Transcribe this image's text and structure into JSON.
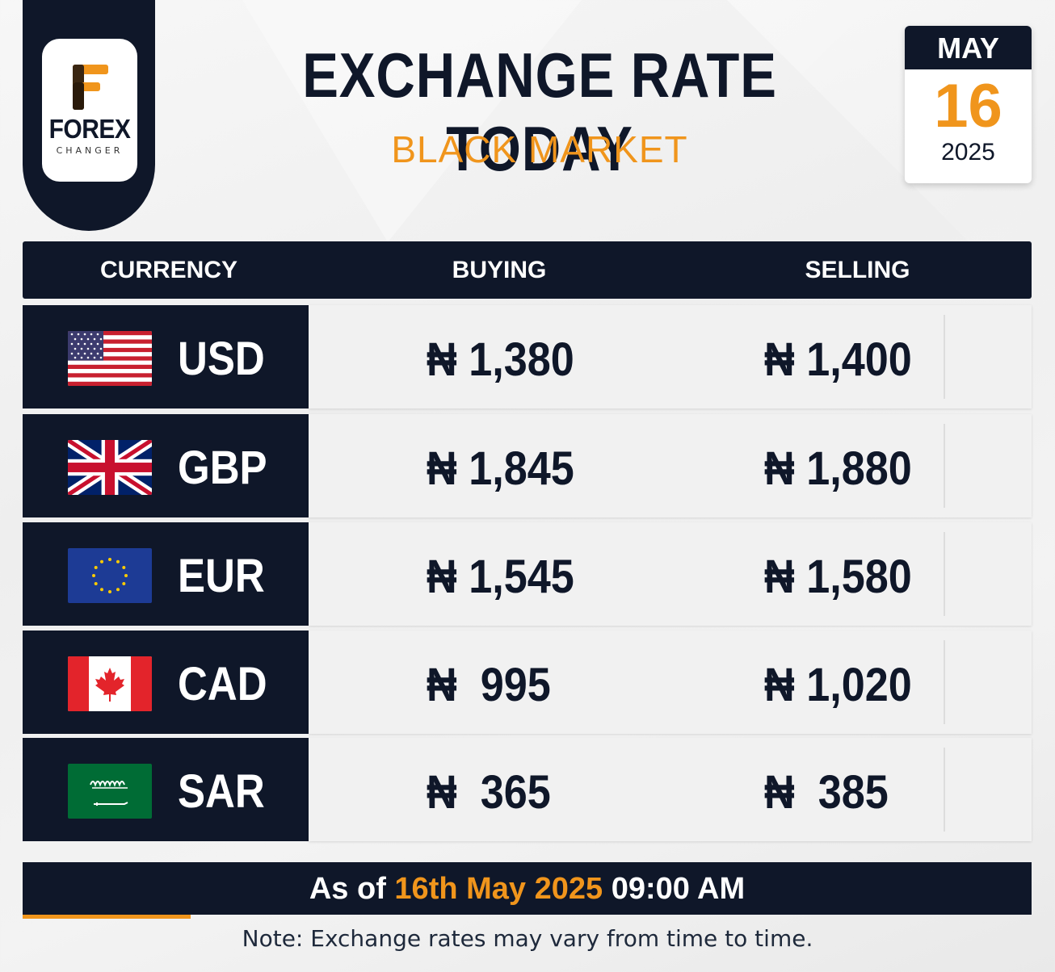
{
  "brand": {
    "name": "FOREX",
    "tagline": "CHANGER",
    "accent_color": "#f0951c",
    "dark_color": "#0f1729"
  },
  "header": {
    "title": "EXCHANGE RATE TODAY",
    "subtitle": "BLACK MARKET"
  },
  "date": {
    "month": "MAY",
    "day": "16",
    "year": "2025"
  },
  "table": {
    "columns": [
      "CURRENCY",
      "BUYING",
      "SELLING"
    ],
    "rows": [
      {
        "code": "USD",
        "flag": "us-flag-icon",
        "buying": "₦ 1,380",
        "selling": "₦ 1,400"
      },
      {
        "code": "GBP",
        "flag": "uk-flag-icon",
        "buying": "₦ 1,845",
        "selling": "₦ 1,880"
      },
      {
        "code": "EUR",
        "flag": "eu-flag-icon",
        "buying": "₦ 1,545",
        "selling": "₦ 1,580"
      },
      {
        "code": "CAD",
        "flag": "canada-flag-icon",
        "buying": "₦  995",
        "selling": "₦ 1,020"
      },
      {
        "code": "SAR",
        "flag": "saudi-flag-icon",
        "buying": "₦  365",
        "selling": "₦  385"
      }
    ]
  },
  "footer": {
    "asof_prefix": "As of ",
    "asof_date": "16th May 2025",
    "asof_time": " 09:00 AM",
    "note": "Note: Exchange rates may vary from time to time."
  }
}
